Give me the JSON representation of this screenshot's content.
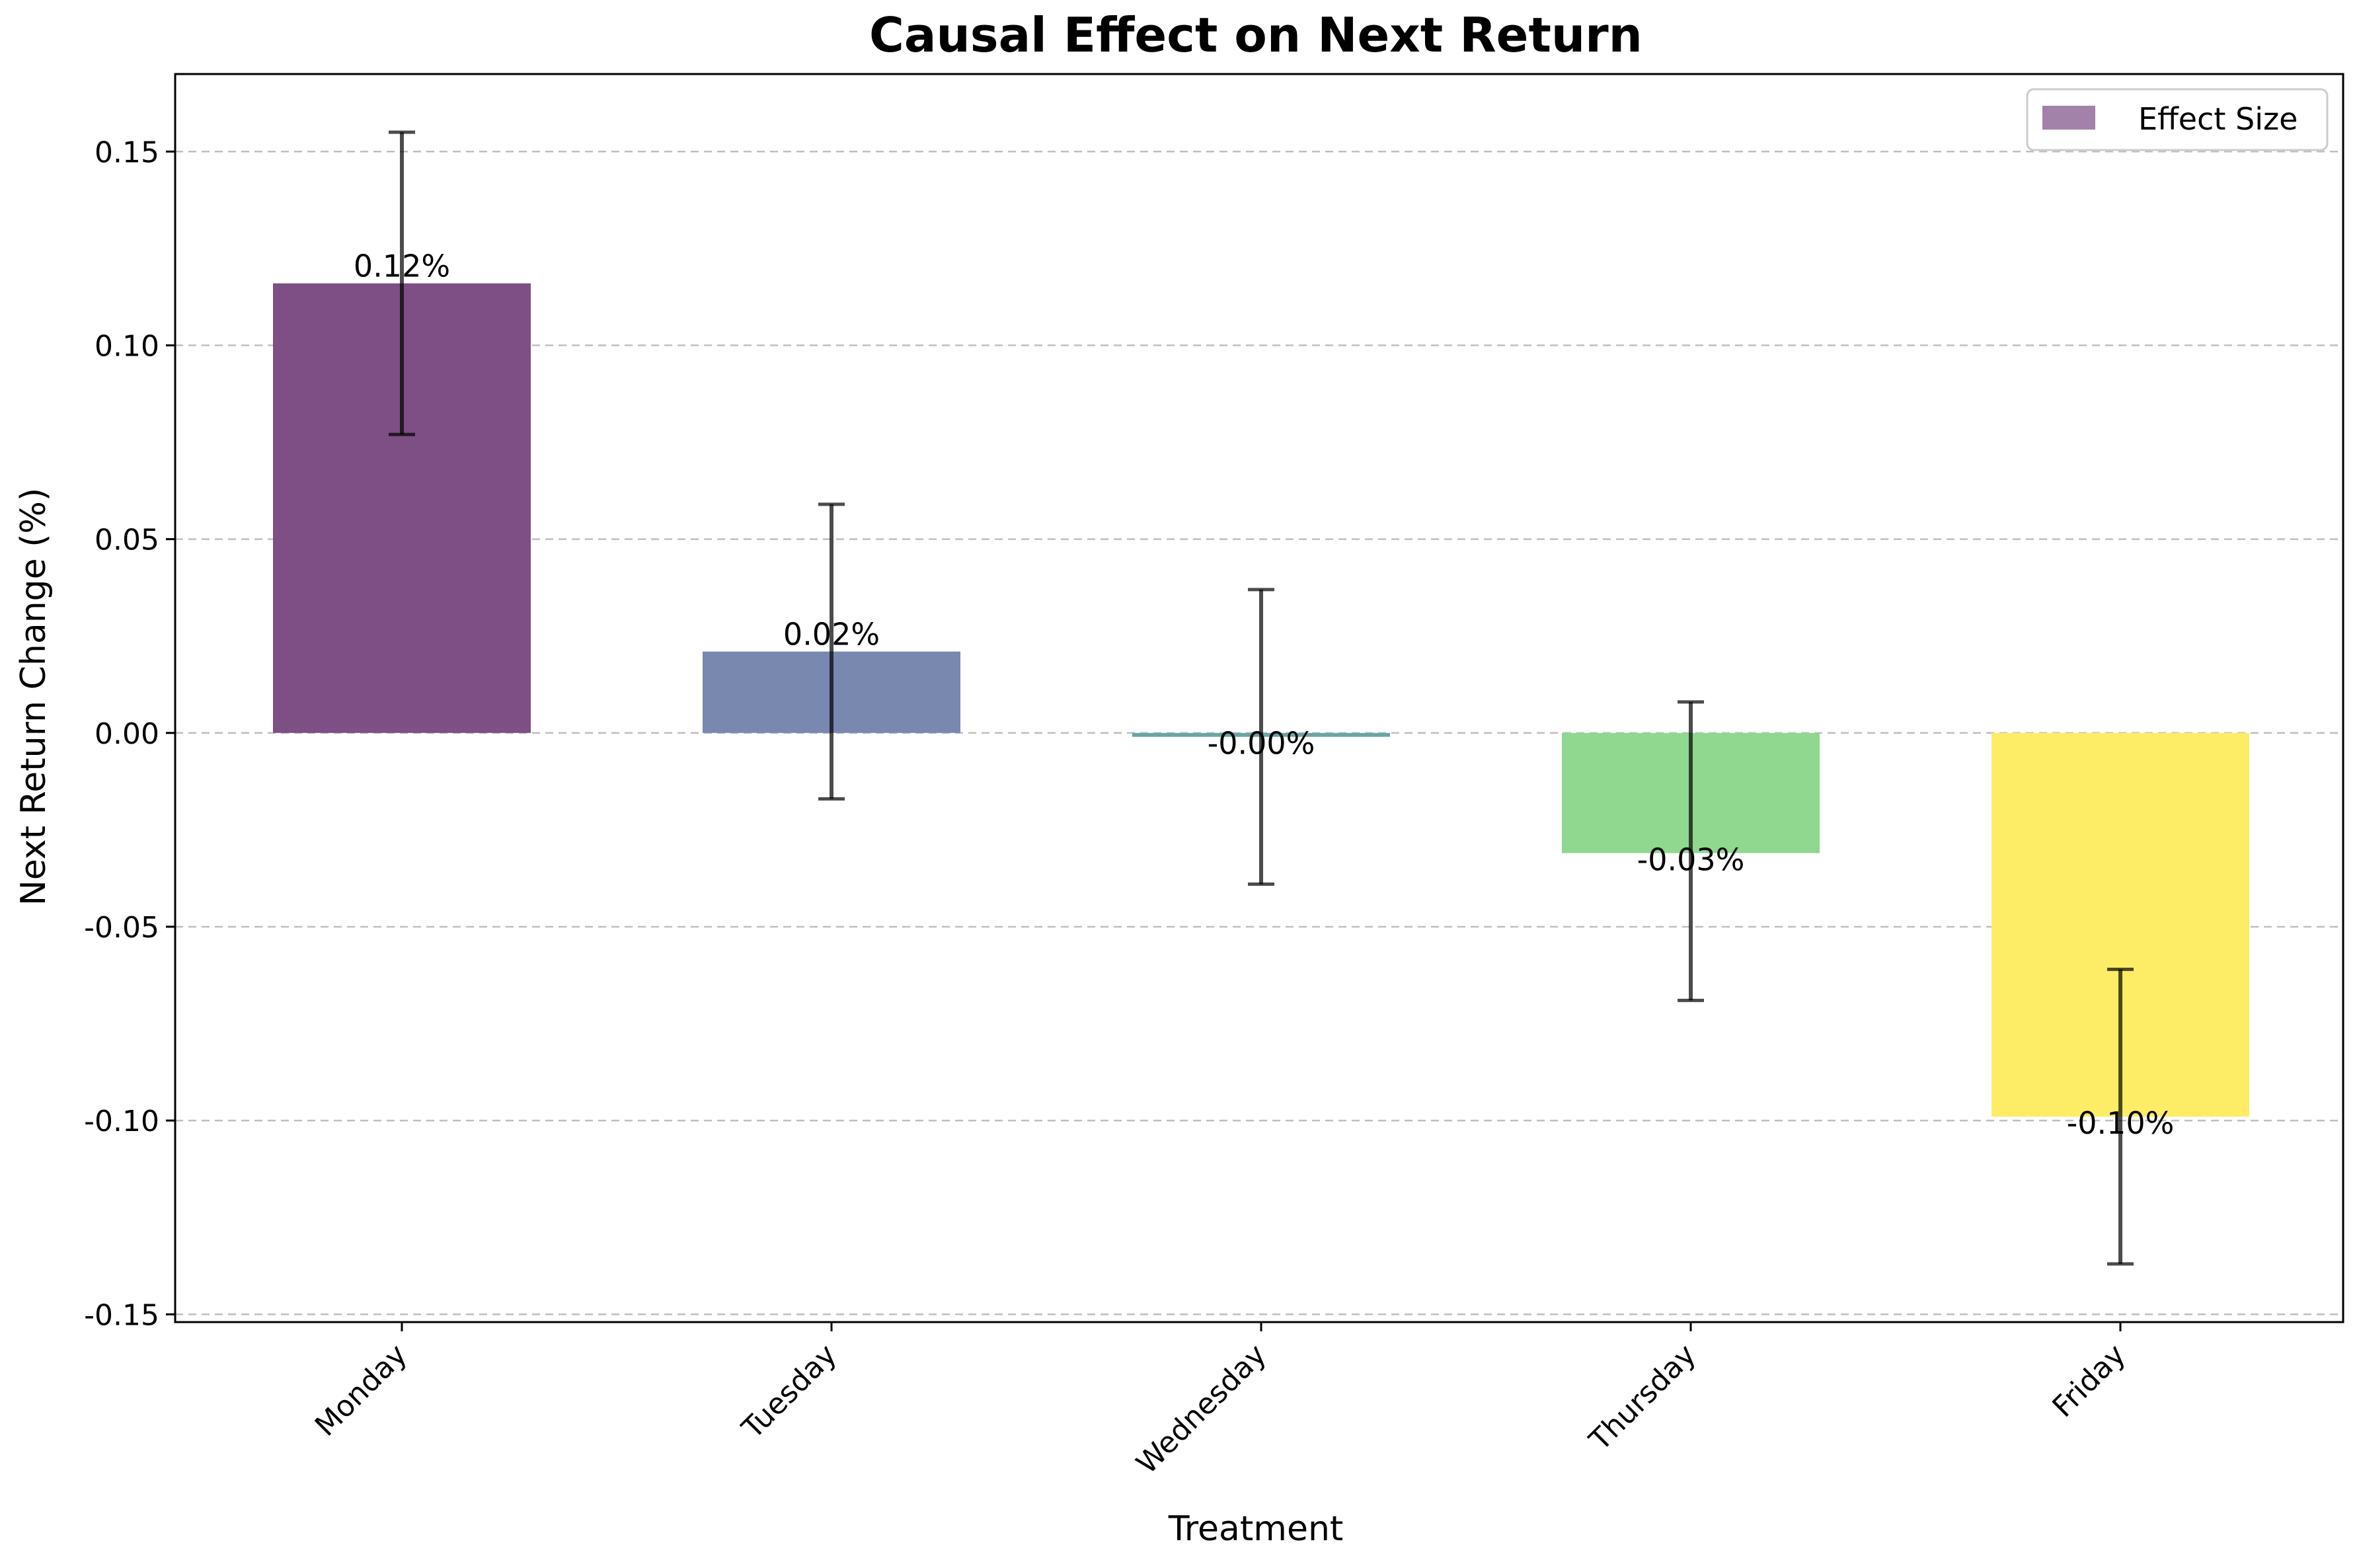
{
  "chart_data": {
    "type": "bar",
    "title": "Causal Effect on Next Return",
    "xlabel": "Treatment",
    "ylabel": "Next Return Change (%)",
    "categories": [
      "Monday",
      "Tuesday",
      "Wednesday",
      "Thursday",
      "Friday"
    ],
    "values": [
      0.116,
      0.021,
      -0.001,
      -0.031,
      -0.099
    ],
    "error_low": [
      0.077,
      -0.017,
      -0.039,
      -0.069,
      -0.137
    ],
    "error_high": [
      0.155,
      0.059,
      0.037,
      0.008,
      -0.061
    ],
    "value_labels": [
      "0.12%",
      "0.02%",
      "-0.00%",
      "-0.03%",
      "-0.10%"
    ],
    "bar_colors": [
      "#7b4d84",
      "#7787ae",
      "#65a5a3",
      "#8fd78f",
      "#fded64"
    ],
    "ylim": [
      -0.152,
      0.17
    ],
    "yticks": [
      -0.15,
      -0.1,
      -0.05,
      0.0,
      0.05,
      0.1,
      0.15
    ],
    "ytick_labels": [
      "-0.15",
      "-0.10",
      "-0.05",
      "0.00",
      "0.05",
      "0.10",
      "0.15"
    ],
    "grid": "y-dashed",
    "legend": {
      "position": "top-right",
      "entries": [
        {
          "label": "Effect Size",
          "color": "#7b4d84"
        }
      ]
    }
  }
}
